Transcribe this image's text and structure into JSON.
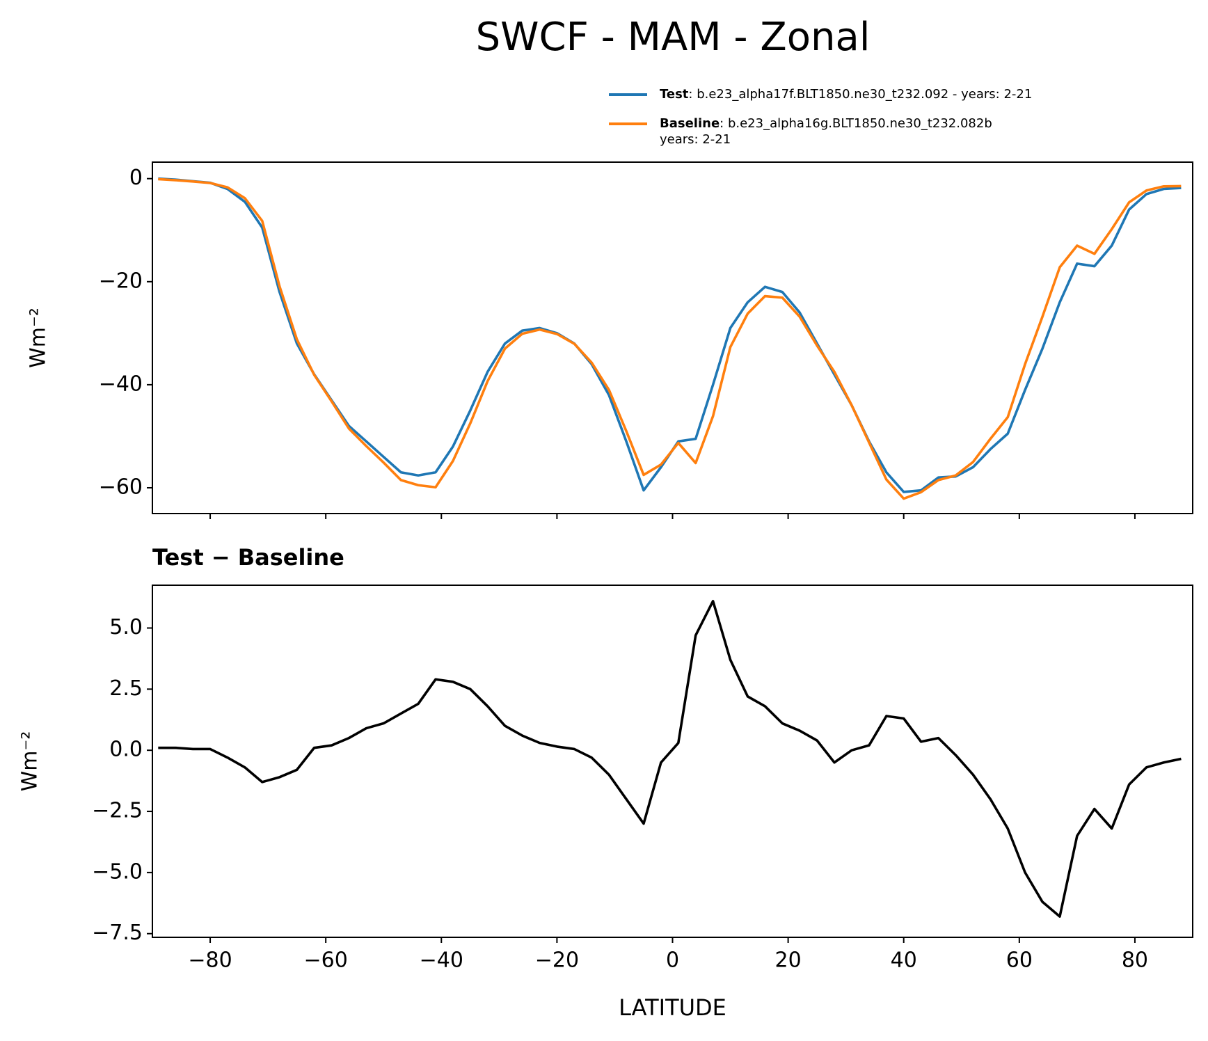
{
  "title": "SWCF - MAM - Zonal",
  "chart_data": [
    {
      "type": "line",
      "legend": "upper right",
      "ylabel": "Wm⁻²",
      "xlim": [
        -90,
        90
      ],
      "xticks": [
        {
          "value": -80,
          "label": "−80"
        },
        {
          "value": -60,
          "label": "−60"
        },
        {
          "value": -40,
          "label": "−40"
        },
        {
          "value": -20,
          "label": "−20"
        },
        0,
        20,
        40,
        60,
        80
      ],
      "xticklabels": false,
      "ylim": [
        -65,
        3.2
      ],
      "yticks": [
        {
          "value": -60,
          "label": "−60"
        },
        {
          "value": -40,
          "label": "−40"
        },
        {
          "value": -20,
          "label": "−20"
        },
        0
      ],
      "x": [
        -89,
        -86,
        -83,
        -80,
        -77,
        -74,
        -71,
        -68,
        -65,
        -62,
        -59,
        -56,
        -53,
        -50,
        -47,
        -44,
        -41,
        -38,
        -35,
        -32,
        -29,
        -26,
        -23,
        -20,
        -17,
        -14,
        -11,
        -8,
        -5,
        -2,
        1,
        4,
        7,
        10,
        13,
        16,
        19,
        22,
        25,
        28,
        31,
        34,
        37,
        40,
        43,
        46,
        49,
        52,
        55,
        58,
        61,
        64,
        67,
        70,
        73,
        76,
        79,
        82,
        85,
        88
      ],
      "series": [
        {
          "name": "Test",
          "description": [
            ": b.e23_alpha17f.BLT1850.ne30_t232.092 - years: 2-21"
          ],
          "color": "#1f77b4",
          "values": [
            0,
            -0.2,
            -0.5,
            -0.8,
            -2,
            -4.5,
            -9.5,
            -22,
            -32,
            -38,
            -43,
            -48,
            -51,
            -54,
            -57,
            -57.6,
            -57,
            -52,
            -45,
            -37.5,
            -32,
            -29.5,
            -29,
            -30,
            -32,
            -36,
            -42,
            -51,
            -60.5,
            -56,
            -51,
            -50.5,
            -40,
            -29,
            -24,
            -21,
            -22,
            -26,
            -32,
            -38,
            -44,
            -51,
            -57,
            -60.8,
            -60.5,
            -58,
            -57.8,
            -56,
            -52.5,
            -49.5,
            -41,
            -33,
            -24,
            -16.5,
            -17,
            -13,
            -6,
            -3,
            -2,
            -1.8
          ]
        },
        {
          "name": "Baseline",
          "description": [
            ": b.e23_alpha16g.BLT1850.ne30_t232.082b",
            "years: 2-21"
          ],
          "color": "#ff7f0e",
          "values": [
            -0.1,
            -0.3,
            -0.55,
            -0.85,
            -1.7,
            -3.8,
            -8.2,
            -20.9,
            -31.2,
            -38.1,
            -43.2,
            -48.5,
            -51.9,
            -55.1,
            -58.5,
            -59.5,
            -59.9,
            -54.8,
            -47.5,
            -39.3,
            -33,
            -30.1,
            -29.3,
            -30.15,
            -32.05,
            -35.7,
            -41,
            -49,
            -57.5,
            -55.5,
            -51.3,
            -55.2,
            -46.1,
            -32.7,
            -26.2,
            -22.8,
            -23.1,
            -26.8,
            -32.4,
            -37.5,
            -44,
            -51.2,
            -58.4,
            -62.1,
            -60.85,
            -58.5,
            -57.6,
            -55,
            -50.5,
            -46.3,
            -36,
            -26.8,
            -17.2,
            -13,
            -14.6,
            -9.8,
            -4.6,
            -2.3,
            -1.5,
            -1.45
          ]
        }
      ]
    },
    {
      "type": "line",
      "subtitle": "Test − Baseline",
      "xlabel": "LATITUDE",
      "ylabel": "Wm⁻²",
      "xlim": [
        -90,
        90
      ],
      "xticks": [
        {
          "value": -80,
          "label": "−80"
        },
        {
          "value": -60,
          "label": "−60"
        },
        {
          "value": -40,
          "label": "−40"
        },
        {
          "value": -20,
          "label": "−20"
        },
        0,
        20,
        40,
        60,
        80
      ],
      "xticklabels": true,
      "ylim": [
        -7.65,
        6.75
      ],
      "yticks": [
        {
          "value": -7.5,
          "label": "−7.5"
        },
        {
          "value": -5,
          "label": "−5.0"
        },
        {
          "value": -2.5,
          "label": "−2.5"
        },
        {
          "value": 0,
          "label": "0.0"
        },
        2.5,
        {
          "value": 5,
          "label": "5.0"
        }
      ],
      "x": [
        -89,
        -86,
        -83,
        -80,
        -77,
        -74,
        -71,
        -68,
        -65,
        -62,
        -59,
        -56,
        -53,
        -50,
        -47,
        -44,
        -41,
        -38,
        -35,
        -32,
        -29,
        -26,
        -23,
        -20,
        -17,
        -14,
        -11,
        -8,
        -5,
        -2,
        1,
        4,
        7,
        10,
        13,
        16,
        19,
        22,
        25,
        28,
        31,
        34,
        37,
        40,
        43,
        46,
        49,
        52,
        55,
        58,
        61,
        64,
        67,
        70,
        73,
        76,
        79,
        82,
        85,
        88
      ],
      "series": [
        {
          "color": "#000000",
          "values": [
            0.1,
            0.1,
            0.05,
            0.05,
            -0.3,
            -0.7,
            -1.3,
            -1.1,
            -0.8,
            0.1,
            0.2,
            0.5,
            0.9,
            1.1,
            1.5,
            1.9,
            2.9,
            2.8,
            2.5,
            1.8,
            1.0,
            0.6,
            0.3,
            0.15,
            0.05,
            -0.3,
            -1.0,
            -2.0,
            -3.0,
            -0.5,
            0.3,
            4.7,
            6.1,
            3.7,
            2.2,
            1.8,
            1.1,
            0.8,
            0.4,
            -0.5,
            0.0,
            0.2,
            1.4,
            1.3,
            0.35,
            0.5,
            -0.2,
            -1.0,
            -2.0,
            -3.2,
            -5.0,
            -6.2,
            -6.8,
            -3.5,
            -2.4,
            -3.2,
            -1.4,
            -0.7,
            -0.5,
            -0.35
          ]
        }
      ]
    }
  ]
}
